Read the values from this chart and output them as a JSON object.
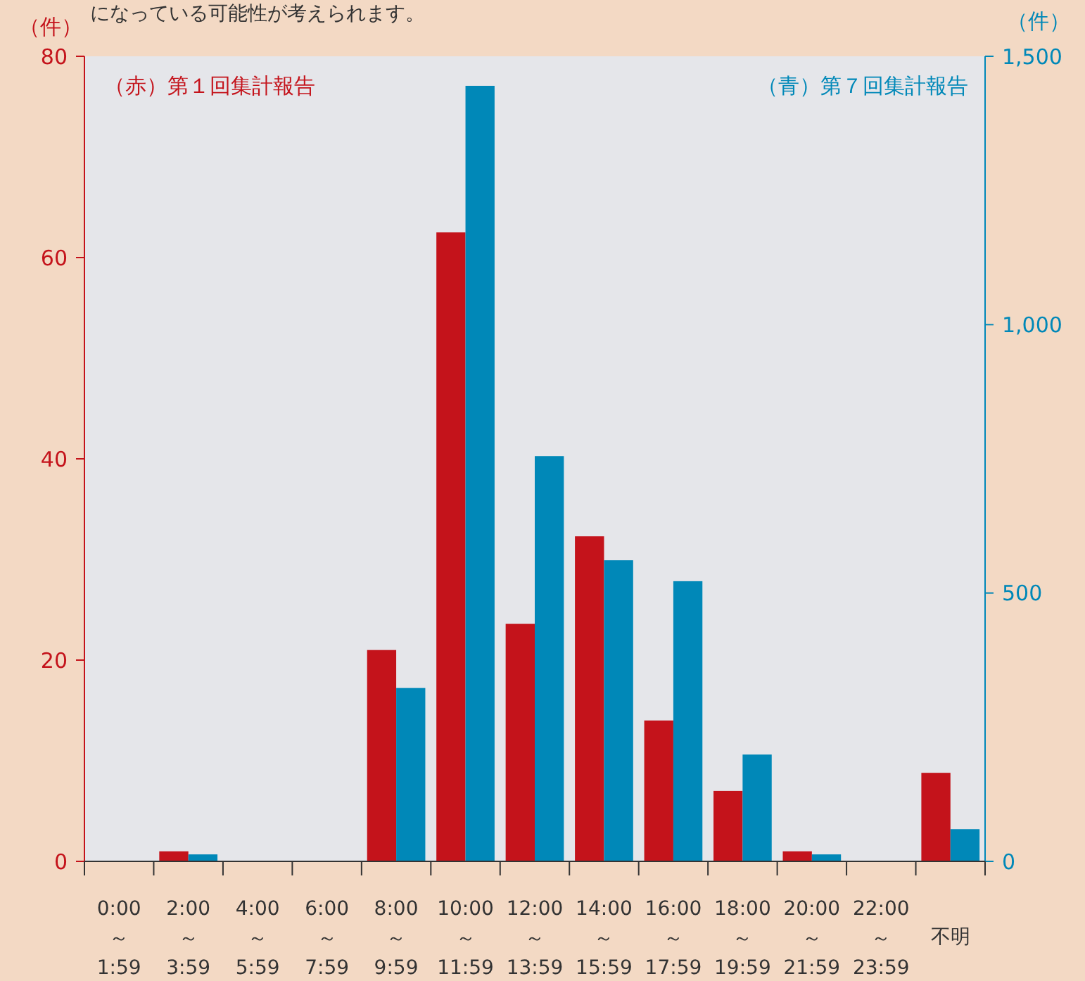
{
  "chart_data": {
    "type": "bar",
    "annotations": [
      "になっている可能性が考えられます。"
    ],
    "ylabel": "（件）",
    "y2label": "（件）",
    "categories": [
      "0:00\n～\n1:59",
      "2:00\n～\n3:59",
      "4:00\n～\n5:59",
      "6:00\n～\n7:59",
      "8:00\n～\n9:59",
      "10:00\n～\n11:59",
      "12:00\n～\n13:59",
      "14:00\n～\n15:59",
      "16:00\n～\n17:59",
      "18:00\n～\n19:59",
      "20:00\n～\n21:59",
      "22:00\n～\n23:59",
      "不明"
    ],
    "series": [
      {
        "name": "（赤）第１回集計報告",
        "color": "#c4131b",
        "values": [
          0,
          1,
          0,
          0,
          21,
          62.5,
          23.6,
          32.3,
          14,
          7,
          1,
          0,
          8.8
        ]
      },
      {
        "name": "（青）第７回集計報告",
        "color": "#0088b8",
        "axis": "y2",
        "values": [
          0,
          13,
          0,
          0,
          323,
          1445,
          755,
          561,
          522,
          199,
          13,
          0,
          60
        ]
      }
    ],
    "ylim": [
      0,
      80
    ],
    "yticks": [
      0,
      20,
      40,
      60,
      80
    ],
    "y2lim": [
      0,
      1500
    ],
    "y2ticks": [
      0,
      500,
      {
        "value": 1000,
        "label": "1,000"
      },
      {
        "value": 1500,
        "label": "1,500"
      }
    ],
    "legend": "top",
    "grid": false
  }
}
